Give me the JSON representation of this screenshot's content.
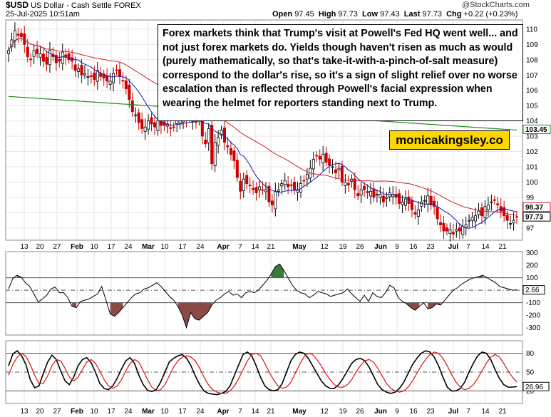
{
  "header": {
    "ticker": "$USD",
    "name": "US Dollar - Cash Settle",
    "exchange": "FOREX",
    "watermark": "@StockCharts.com",
    "datetime": "25-Jul-2025 10:51am",
    "ohlc": {
      "open_label": "Open",
      "open": "97.45",
      "high_label": "High",
      "high": "97.73",
      "low_label": "Low",
      "low": "97.43",
      "last_label": "Last",
      "last": "97.73",
      "chg_label": "Chg",
      "chg": "+0.22 (+0.23%)"
    }
  },
  "annotation": "Forex markets think that Trump's visit at Powell's Fed HQ went well... and not just forex markets do. Yields though haven't risen as much as would (purely mathematically, so that's take-it-with-a-pinch-of-salt measure) correspond to the dollar's rise, so it's a sign of slight relief over no worse escalation than is reflected through Powell's facial expression when wearing the helmet for reporters standing next to Trump.",
  "brand": "monicakingsley.co",
  "colors": {
    "up_candle": "#000000",
    "down_candle": "#cc0000",
    "ma_short": "#1a1aa6",
    "ma_mid": "#d0202a",
    "ma_long": "#1f8a1f",
    "cci_fill_pos": "#3c7a3c",
    "cci_fill_neg": "#8c4a46",
    "stoch_k": "#000000",
    "stoch_d": "#e01010",
    "brand_bg": "#ffd700"
  },
  "chart_data": [
    {
      "type": "candlestick",
      "title": "$USD US Dollar - Cash Settle FOREX",
      "x_tick_labels": [
        {
          "label": "13"
        },
        {
          "label": "20"
        },
        {
          "label": "27"
        },
        {
          "label": "Feb",
          "month": true
        },
        {
          "label": "10"
        },
        {
          "label": "17"
        },
        {
          "label": "24"
        },
        {
          "label": "Mar",
          "month": true
        },
        {
          "label": "10"
        },
        {
          "label": "17"
        },
        {
          "label": "24"
        },
        {
          "label": "Apr",
          "month": true
        },
        {
          "label": "7"
        },
        {
          "label": "14"
        },
        {
          "label": "21"
        },
        {
          "label": "May",
          "month": true
        },
        {
          "label": "12"
        },
        {
          "label": "19"
        },
        {
          "label": "26"
        },
        {
          "label": "Jun",
          "month": true
        },
        {
          "label": "9"
        },
        {
          "label": "16"
        },
        {
          "label": "23"
        },
        {
          "label": "Jul",
          "month": true
        },
        {
          "label": "7"
        },
        {
          "label": "14"
        },
        {
          "label": "21"
        }
      ],
      "y_ticks": [
        110,
        109,
        108,
        107,
        106,
        105,
        104,
        103,
        102,
        101,
        100,
        99,
        98,
        97
      ],
      "ylim": [
        96.2,
        110.6
      ],
      "price_tags": [
        {
          "value": 103.45,
          "text": "103.45",
          "color": "#1f8a1f"
        },
        {
          "value": 98.37,
          "text": "98.37",
          "color": "#d0202a"
        },
        {
          "value": 97.73,
          "text": "97.73",
          "color": "#000000"
        }
      ],
      "closes": [
        108.6,
        109.3,
        109.9,
        109.6,
        109.5,
        109.0,
        108.2,
        108.0,
        108.6,
        108.4,
        108.4,
        107.9,
        107.7,
        108.6,
        108.2,
        107.8,
        107.9,
        108.5,
        108.2,
        108.0,
        107.9,
        107.3,
        107.4,
        107.0,
        107.1,
        106.9,
        106.9,
        106.7,
        107.3,
        106.9,
        106.8,
        106.6,
        106.6,
        107.1,
        107.3,
        106.9,
        106.6,
        106.1,
        105.4,
        104.6,
        104.4,
        103.9,
        103.5,
        103.6,
        104.0,
        103.8,
        103.6,
        104.0,
        103.7,
        103.7,
        103.8,
        103.5,
        103.6,
        104.0,
        104.1,
        104.3,
        104.1,
        104.2,
        104.0,
        103.9,
        104.3,
        103.0,
        102.5,
        103.5,
        101.2,
        102.6,
        102.9,
        103.4,
        102.6,
        102.3,
        101.8,
        101.4,
        100.3,
        99.4,
        100.2,
        99.9,
        99.8,
        99.5,
        99.3,
        99.7,
        99.5,
        99.5,
        98.7,
        98.5,
        99.4,
        99.5,
        99.9,
        100.1,
        99.7,
        99.8,
        99.5,
        99.5,
        99.9,
        100.1,
        100.5,
        100.9,
        101.5,
        101.7,
        101.5,
        101.8,
        101.3,
        101.1,
        101.0,
        100.6,
        100.9,
        100.0,
        100.0,
        99.8,
        100.2,
        99.5,
        99.1,
        99.5,
        99.5,
        99.3,
        99.4,
        99.0,
        99.2,
        99.2,
        98.7,
        99.0,
        99.3,
        99.2,
        99.0,
        98.6,
        98.7,
        98.9,
        98.6,
        98.2,
        97.9,
        98.2,
        98.7,
        98.8,
        99.1,
        98.5,
        98.4,
        97.6,
        97.2,
        96.8,
        96.8,
        96.9,
        96.6,
        96.9,
        96.8,
        97.1,
        97.2,
        97.5,
        97.7,
        97.8,
        98.1,
        97.8,
        98.4,
        98.5,
        98.7,
        98.8,
        98.5,
        98.1,
        97.8,
        97.5,
        97.3,
        97.5,
        97.73
      ]
    },
    {
      "type": "line",
      "title": "",
      "y_ticks": [
        300,
        200,
        100,
        0,
        -100,
        -200,
        -300
      ],
      "ylim": [
        -360,
        310
      ],
      "reference_lines": [
        100,
        -100
      ],
      "zero_line": 0,
      "last_value_tag": "2.66",
      "values": [
        10,
        95,
        120,
        105,
        60,
        30,
        -30,
        -95,
        -70,
        -40,
        10,
        25,
        -20,
        -20,
        -60,
        -130,
        -140,
        -90,
        -80,
        -70,
        -50,
        -30,
        30,
        -80,
        -190,
        -210,
        -180,
        -140,
        -100,
        -60,
        -30,
        -20,
        10,
        20,
        40,
        60,
        30,
        -10,
        -50,
        -80,
        -130,
        -200,
        -300,
        -180,
        -230,
        -240,
        -210,
        -180,
        -120,
        -80,
        -60,
        -30,
        -10,
        -40,
        -30,
        -60,
        -20,
        -10,
        -20,
        0,
        40,
        80,
        130,
        190,
        210,
        160,
        100,
        40,
        0,
        -20,
        -30,
        -60,
        -40,
        -10,
        -20,
        -30,
        -50,
        -40,
        -30,
        -20,
        10,
        -30,
        -60,
        -90,
        -40,
        -90,
        -20,
        -50,
        -60,
        -20,
        40,
        20,
        -60,
        -90,
        -110,
        -140,
        -160,
        -130,
        -100,
        -150,
        -140,
        -110,
        -120,
        -80,
        -40,
        0,
        20,
        50,
        70,
        90,
        100,
        110,
        120,
        100,
        80,
        60,
        30,
        20,
        10,
        0,
        2.66
      ]
    },
    {
      "type": "line",
      "title": "",
      "y_ticks": [
        80,
        50,
        20
      ],
      "ylim": [
        0,
        100
      ],
      "reference_lines": [
        80,
        50,
        20
      ],
      "last_value_tag": "26.96",
      "series": [
        {
          "name": "",
          "values": [
            60,
            79,
            84,
            76,
            62,
            38,
            25,
            28,
            48,
            66,
            77,
            70,
            52,
            36,
            30,
            42,
            60,
            70,
            73,
            65,
            50,
            32,
            24,
            22,
            28,
            40,
            55,
            68,
            73,
            64,
            45,
            30,
            21,
            19,
            22,
            34,
            50,
            66,
            72,
            76,
            78,
            72,
            60,
            44,
            30,
            20,
            16,
            15,
            14,
            16,
            19,
            28,
            45,
            62,
            78,
            82,
            76,
            60,
            42,
            28,
            22,
            20,
            22,
            32,
            50,
            68,
            78,
            82,
            80,
            72,
            60,
            48,
            36,
            28,
            24,
            24,
            30,
            40,
            52,
            64,
            70,
            72,
            68,
            58,
            44,
            30,
            22,
            18,
            16,
            18,
            24,
            34,
            48,
            62,
            72,
            80,
            84,
            82,
            74,
            60,
            42,
            26,
            20,
            20,
            24,
            34,
            50,
            64,
            76,
            82,
            80,
            70,
            54,
            40,
            30,
            26,
            26,
            26.96
          ]
        },
        {
          "name": "",
          "values": [
            45,
            62,
            74,
            80,
            75,
            62,
            45,
            32,
            32,
            44,
            60,
            70,
            68,
            56,
            42,
            36,
            42,
            54,
            66,
            70,
            64,
            52,
            38,
            28,
            24,
            28,
            38,
            52,
            64,
            70,
            66,
            52,
            38,
            26,
            20,
            22,
            30,
            44,
            58,
            68,
            74,
            76,
            74,
            68,
            56,
            42,
            30,
            22,
            18,
            16,
            16,
            20,
            28,
            40,
            54,
            68,
            78,
            80,
            76,
            64,
            50,
            38,
            28,
            24,
            26,
            34,
            48,
            62,
            74,
            80,
            78,
            70,
            60,
            48,
            38,
            30,
            26,
            26,
            30,
            38,
            50,
            60,
            68,
            70,
            66,
            56,
            44,
            32,
            24,
            20,
            18,
            20,
            26,
            36,
            48,
            60,
            70,
            78,
            82,
            80,
            72,
            60,
            46,
            34,
            26,
            22,
            24,
            30,
            40,
            52,
            64,
            74,
            78,
            74,
            64,
            52,
            42,
            34
          ]
        }
      ],
      "x_tick_labels": [
        {
          "label": "13"
        },
        {
          "label": "20"
        },
        {
          "label": "27"
        },
        {
          "label": "Feb",
          "month": true
        },
        {
          "label": "10"
        },
        {
          "label": "17"
        },
        {
          "label": "24"
        },
        {
          "label": "Mar",
          "month": true
        },
        {
          "label": "10"
        },
        {
          "label": "17"
        },
        {
          "label": "24"
        },
        {
          "label": "Apr",
          "month": true
        },
        {
          "label": "7"
        },
        {
          "label": "14"
        },
        {
          "label": "21"
        },
        {
          "label": "May",
          "month": true
        },
        {
          "label": "12"
        },
        {
          "label": "19"
        },
        {
          "label": "26"
        },
        {
          "label": "Jun",
          "month": true
        },
        {
          "label": "9"
        },
        {
          "label": "16"
        },
        {
          "label": "23"
        },
        {
          "label": "Jul",
          "month": true
        },
        {
          "label": "7"
        },
        {
          "label": "14"
        },
        {
          "label": "21"
        }
      ]
    }
  ]
}
